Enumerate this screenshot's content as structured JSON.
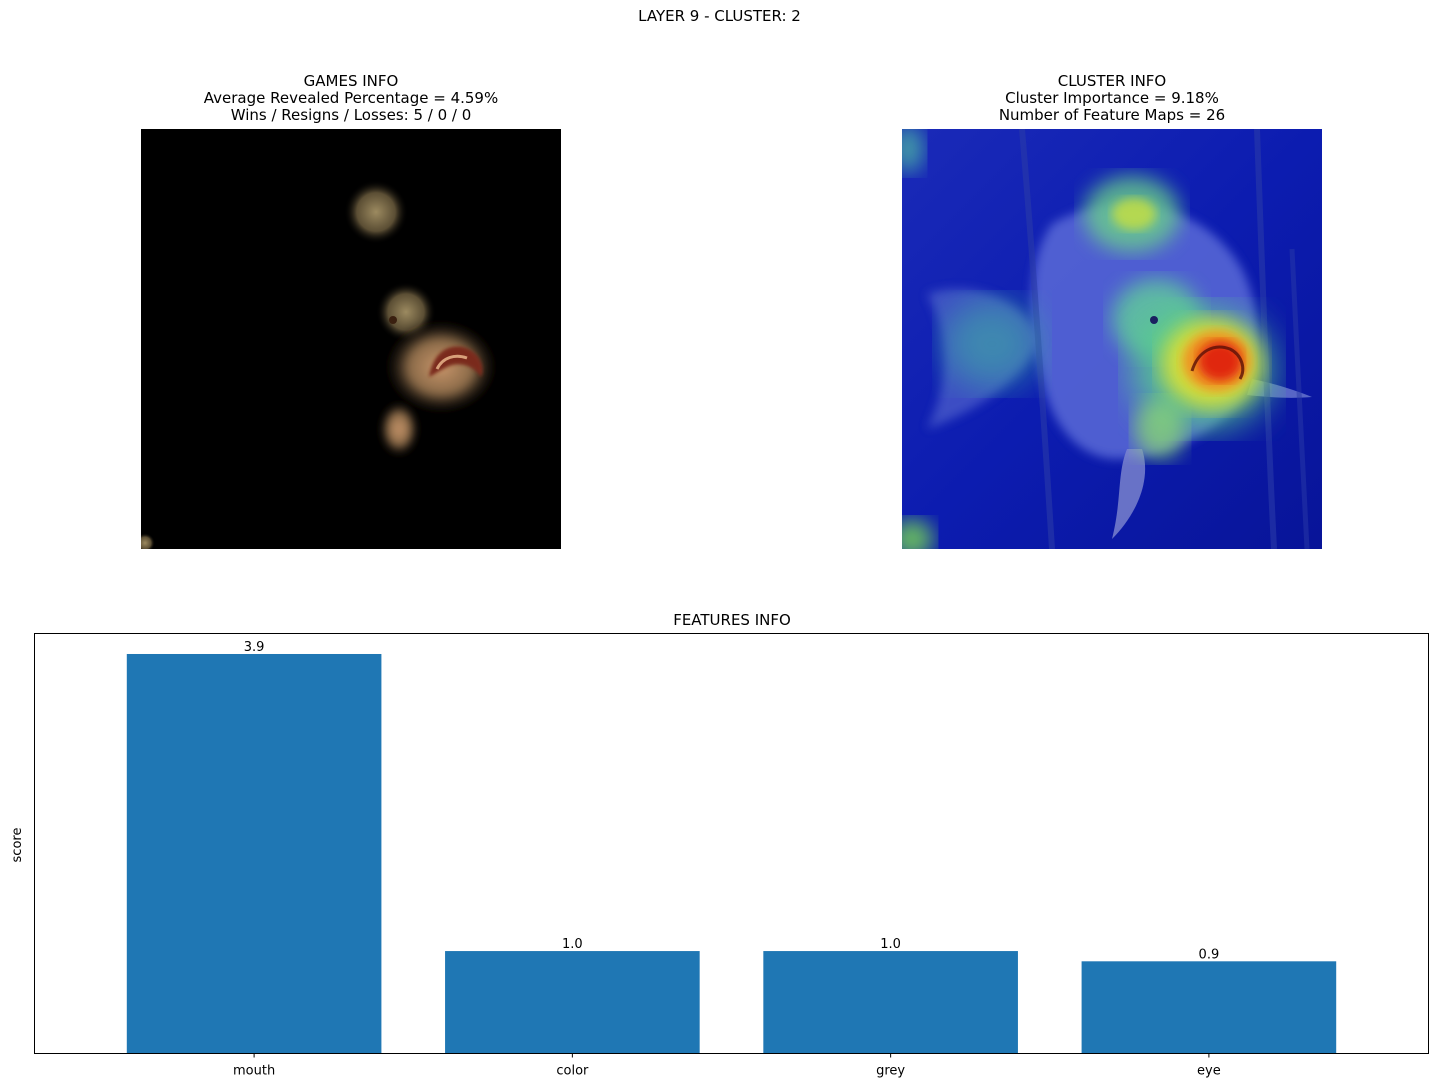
{
  "suptitle": "LAYER 9 - CLUSTER: 2",
  "games_info": {
    "title": "GAMES INFO",
    "line1": "Average Revealed Percentage = 4.59%",
    "line2": "Wins / Resigns / Losses: 5 / 0 / 0"
  },
  "cluster_info": {
    "title": "CLUSTER INFO",
    "line1": "Cluster Importance = 9.18%",
    "line2": "Number of Feature Maps = 26"
  },
  "chart_data": {
    "type": "bar",
    "title": "FEATURES INFO",
    "xlabel": "",
    "ylabel": "score",
    "categories": [
      "mouth",
      "color",
      "grey",
      "eye"
    ],
    "values": [
      3.9,
      1.0,
      1.0,
      0.9
    ],
    "value_labels": [
      "3.9",
      "1.0",
      "1.0",
      "0.9"
    ],
    "ylim": [
      0,
      4.1
    ],
    "bar_color": "#1f77b4",
    "grid": false,
    "y_ticks_visible": false
  }
}
